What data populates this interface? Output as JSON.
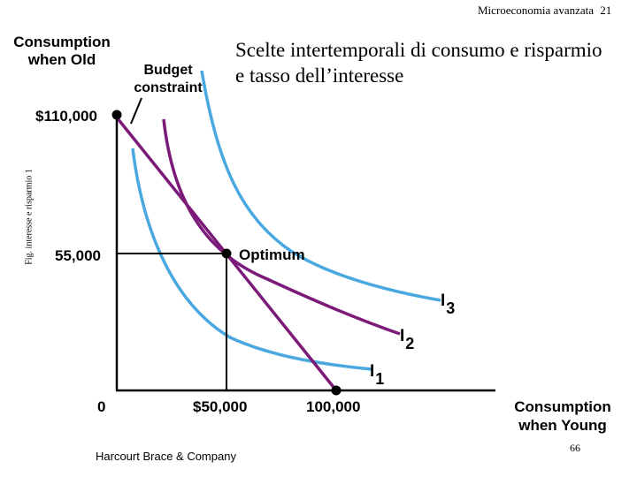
{
  "header": {
    "course": "Microeconomia avanzata",
    "slide_number": "21"
  },
  "title_line1": "Scelte intertemporali di consumo e risparmio",
  "title_line2": "e tasso dell’interesse",
  "side_label": "Fig. interesse e risparmio 1",
  "axes": {
    "y_label_line1": "Consumption",
    "y_label_line2": "when Old",
    "x_label_line1": "Consumption",
    "x_label_line2": "when Young",
    "origin": "0"
  },
  "labels": {
    "budget_line1": "Budget",
    "budget_line2": "constraint",
    "optimum": "Optimum",
    "y_tick_top": "$110,000",
    "y_tick_mid": "55,000",
    "x_tick_mid": "$50,000",
    "x_tick_end": "100,000"
  },
  "curves": [
    {
      "letter": "I",
      "sub": "1"
    },
    {
      "letter": "I",
      "sub": "2"
    },
    {
      "letter": "I",
      "sub": "3"
    }
  ],
  "footer": {
    "publisher": "Harcourt Brace & Company",
    "page": "66"
  },
  "colors": {
    "indifference": "#4aa8e0",
    "budget": "#7b1a78",
    "axis": "#000000"
  }
}
